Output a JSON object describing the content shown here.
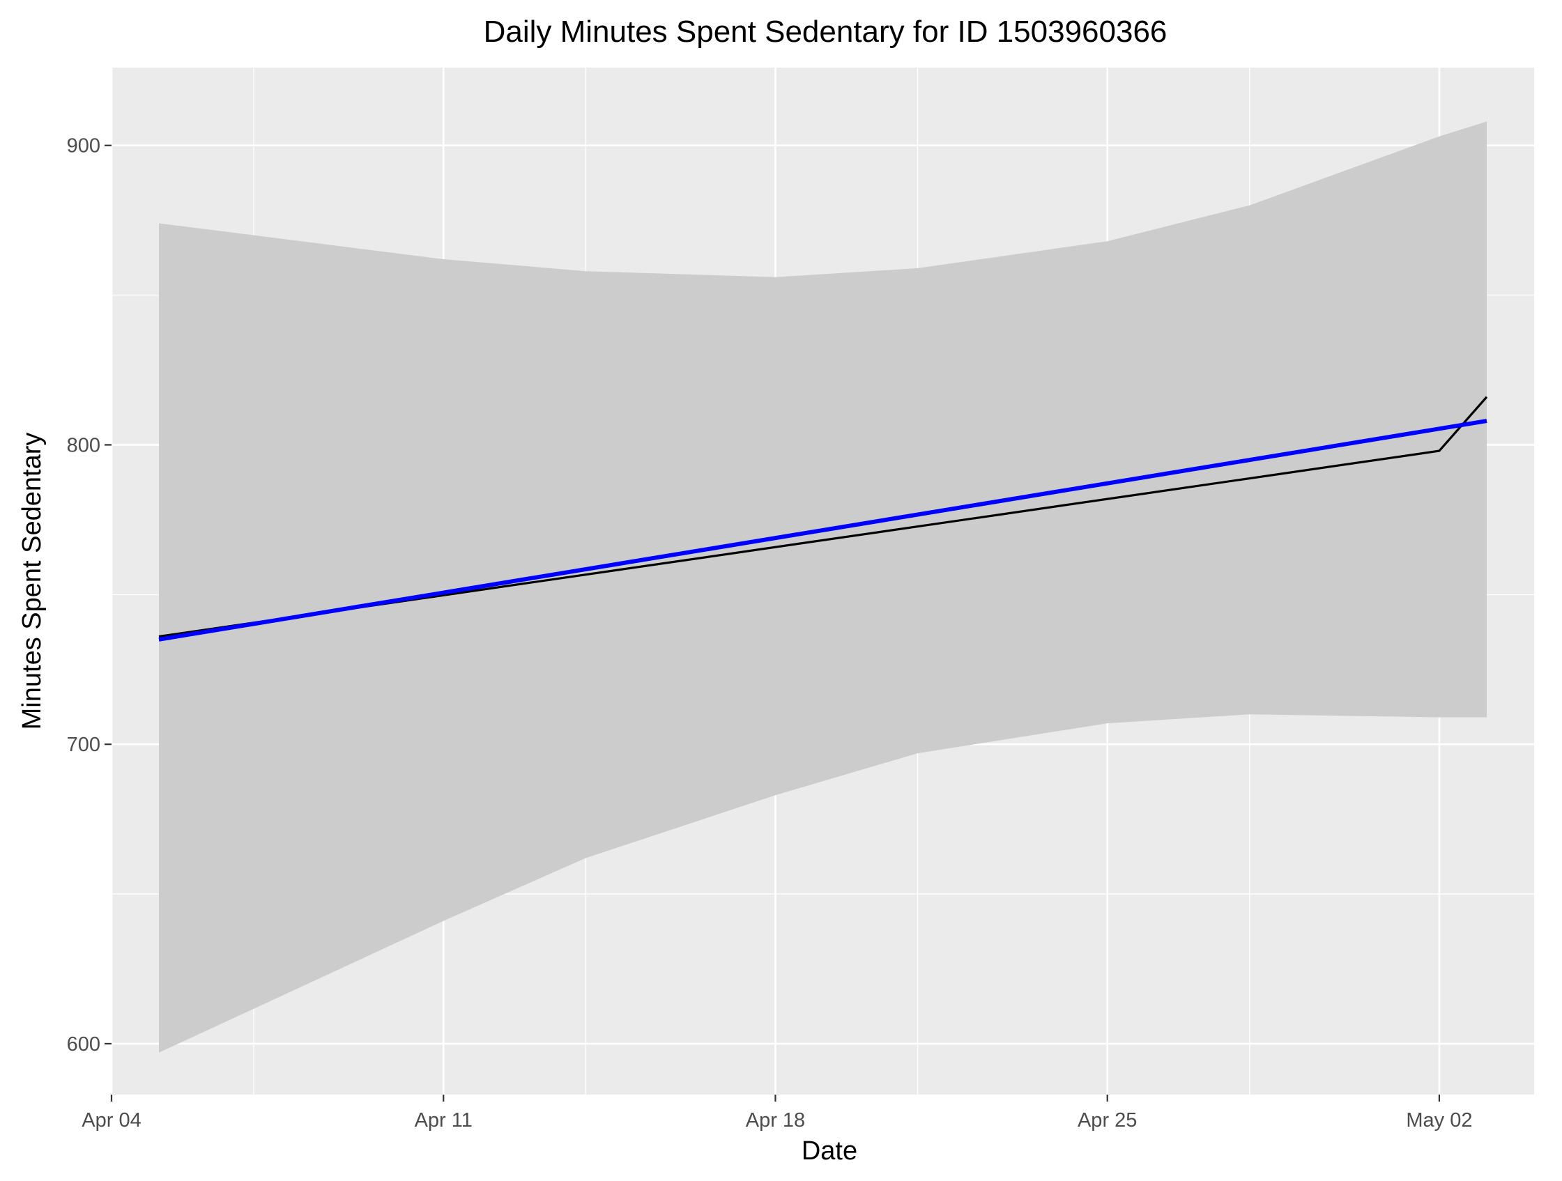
{
  "chart_data": {
    "type": "line",
    "title": "Daily Minutes Spent Sedentary for ID 1503960366",
    "xlabel": "Date",
    "ylabel": "Minutes Spent Sedentary",
    "x_ticks": [
      "Apr 04",
      "Apr 11",
      "Apr 18",
      "Apr 25",
      "May 02"
    ],
    "y_ticks": [
      600,
      700,
      800,
      900
    ],
    "xlim": [
      "2016-04-04",
      "2016-05-04"
    ],
    "ylim": [
      583,
      926
    ],
    "grid": true,
    "legend": "none",
    "series": [
      {
        "role": "observed",
        "color": "#000000",
        "points": [
          {
            "x": "2016-04-05",
            "y": 736
          },
          {
            "x": "2016-05-02",
            "y": 798
          },
          {
            "x": "2016-05-03",
            "y": 816
          }
        ]
      },
      {
        "role": "linear-fit",
        "color": "#0000ff",
        "points": [
          {
            "x": "2016-04-05",
            "y": 735
          },
          {
            "x": "2016-05-03",
            "y": 808
          }
        ]
      }
    ],
    "confidence_band": {
      "color": "#cccccc",
      "points": [
        {
          "x": "2016-04-05",
          "lower": 597,
          "upper": 874
        },
        {
          "x": "2016-04-11",
          "lower": 641,
          "upper": 862
        },
        {
          "x": "2016-04-14",
          "lower": 662,
          "upper": 858
        },
        {
          "x": "2016-04-18",
          "lower": 683,
          "upper": 856
        },
        {
          "x": "2016-04-21",
          "lower": 697,
          "upper": 859
        },
        {
          "x": "2016-04-25",
          "lower": 707,
          "upper": 868
        },
        {
          "x": "2016-04-28",
          "lower": 710,
          "upper": 880
        },
        {
          "x": "2016-05-02",
          "lower": 709,
          "upper": 903
        },
        {
          "x": "2016-05-03",
          "lower": 709,
          "upper": 908
        }
      ]
    },
    "colors": {
      "panel_background": "#ebebeb",
      "grid_major": "#ffffff",
      "fit_line": "#0000ff",
      "observed_line": "#000000",
      "band": "#cccccc"
    }
  }
}
